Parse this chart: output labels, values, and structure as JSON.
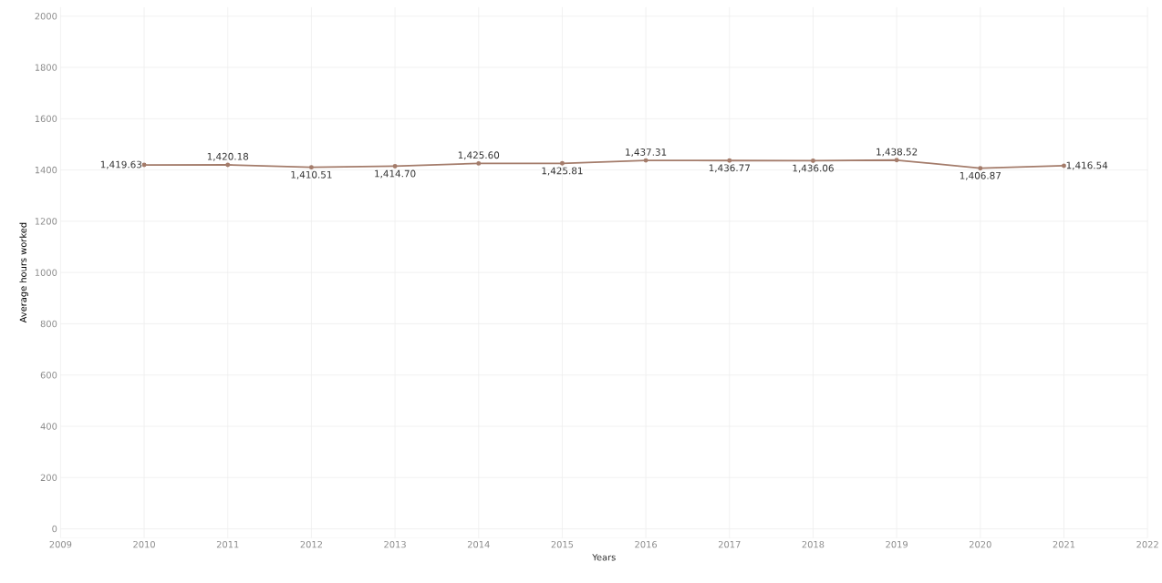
{
  "chart_data": {
    "type": "line",
    "xlabel": "Years",
    "ylabel": "Average hours worked",
    "x": [
      2010,
      2011,
      2012,
      2013,
      2014,
      2015,
      2016,
      2017,
      2018,
      2019,
      2020,
      2021
    ],
    "series": [
      {
        "color": "#a47c6b",
        "values": [
          1419.63,
          1420.18,
          1410.51,
          1414.7,
          1425.6,
          1425.81,
          1437.31,
          1436.77,
          1436.06,
          1438.52,
          1406.87,
          1416.54
        ],
        "value_labels": [
          "1,419.63",
          "1,420.18",
          "1,410.51",
          "1,414.70",
          "1,425.60",
          "1,425.81",
          "1,437.31",
          "1,436.77",
          "1,436.06",
          "1,438.52",
          "1,406.87",
          "1,416.54"
        ]
      }
    ],
    "xlim": [
      2009,
      2022
    ],
    "xticks": [
      2009,
      2010,
      2011,
      2012,
      2013,
      2014,
      2015,
      2016,
      2017,
      2018,
      2019,
      2020,
      2021,
      2022
    ],
    "ylim": [
      -35,
      2035
    ],
    "yticks": [
      0,
      200,
      400,
      600,
      800,
      1000,
      1200,
      1400,
      1600,
      1800,
      2000
    ],
    "grid": true,
    "marker": "circle",
    "line_style": "solid"
  }
}
